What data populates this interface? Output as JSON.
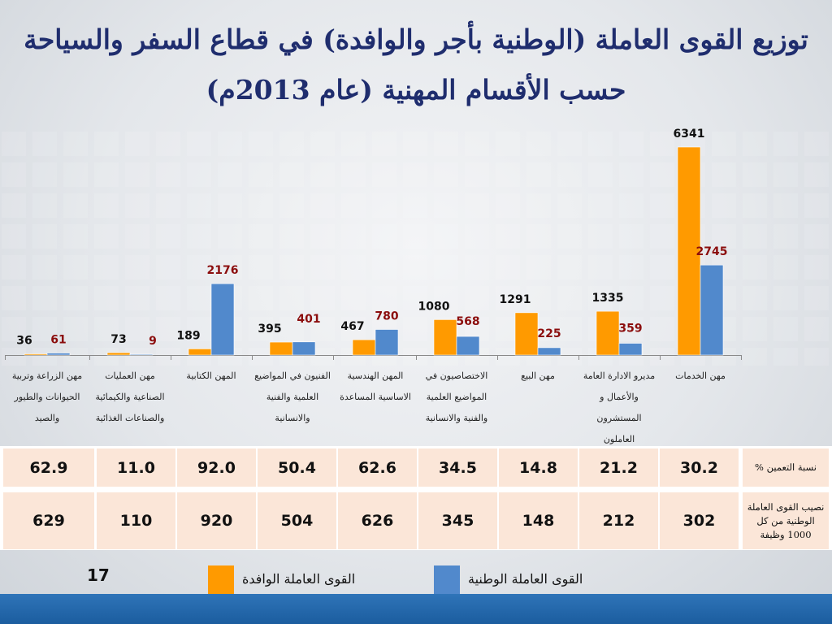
{
  "title": {
    "line1": "توزيع القوى العاملة (الوطنية بأجر والوافدة) في قطاع السفر والسياحة",
    "line2": "حسب الأقسام المهنية (عام 2013م)"
  },
  "chart_data": {
    "type": "bar",
    "categories": [
      "مهن الخدمات",
      "مديرو الادارة العامة والأعمال و المستشرون العاملون",
      "مهن البيع",
      "الاختصاصيون في المواضيع العلمية والفنية والانسانية",
      "المهن الهندسية الاساسية المساعدة",
      "الفنيون في المواضيع العلمية والفنية والانسانية",
      "المهن الكتابية",
      "مهن العمليات الصناعية والكيمائية والصناعات الغذائية",
      "مهن الزراعة وتربية الحيوانات والطيور والصيد"
    ],
    "series": [
      {
        "name": "القوى العاملة الوافدة",
        "values": [
          6341,
          1335,
          1291,
          1080,
          467,
          395,
          189,
          73,
          36
        ],
        "color": "#ff9a00",
        "label_color": "#111111"
      },
      {
        "name": "القوى العاملة الوطنية",
        "values": [
          2745,
          359,
          225,
          568,
          780,
          401,
          2176,
          9,
          61
        ],
        "color": "#5189cc",
        "label_color": "#8b0d0d"
      }
    ],
    "ylim": [
      0,
      6341
    ],
    "legend": "bottom"
  },
  "table": {
    "rows": [
      {
        "label": "نسبة التعمين %",
        "values": [
          "30.2",
          "21.2",
          "14.8",
          "34.5",
          "62.6",
          "50.4",
          "92.0",
          "11.0",
          "62.9"
        ]
      },
      {
        "label": "نصيب القوى العاملة الوطنية من كل 1000 وظيفة",
        "values": [
          "302",
          "212",
          "148",
          "345",
          "626",
          "504",
          "920",
          "110",
          "629"
        ]
      }
    ]
  },
  "page_number": "17",
  "colors": {
    "title": "#1f2d6e",
    "bottom_bar": "#1b5d9f",
    "table_fill": "#fbe6d8"
  }
}
